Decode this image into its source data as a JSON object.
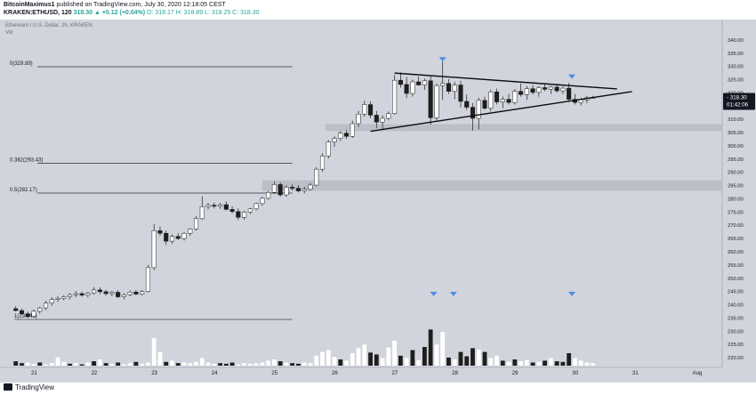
{
  "header": {
    "author": "BitcoinMaximus1",
    "published": "published on TradingView.com, July 30, 2020 12:18:05 CEST",
    "symbol": "KRAKEN:ETHUSD, 120",
    "last": "318.30",
    "change": "▲ +0.12 (+0.04%)",
    "ohlc": "O: 318.17  H: 318.89  L: 318.25  C: 318.30"
  },
  "instrument_label": "Ethereum / U.S. Dollar, 2h, KRAKEN",
  "volume_label": "Vol",
  "footer": {
    "logo_text": "TradingView"
  },
  "colors": {
    "background": "#d1d4dc",
    "up_candle": "#ffffff",
    "down_candle": "#1e1e1e",
    "marker": "#4a90e2",
    "support_zone": "#b8bbc4"
  },
  "chart_data": {
    "type": "candlestick",
    "title": "Ethereum / U.S. Dollar, 2h, KRAKEN",
    "ylim": [
      218,
      343
    ],
    "y_ticks": [
      "340.00",
      "335.00",
      "330.00",
      "325.00",
      "320.00",
      "315.00",
      "310.00",
      "305.00",
      "300.00",
      "295.00",
      "290.00",
      "285.00",
      "280.00",
      "275.00",
      "270.00",
      "265.00",
      "260.00",
      "255.00",
      "250.00",
      "245.00",
      "240.00",
      "235.00",
      "230.00",
      "225.00",
      "220.00"
    ],
    "x_ticks": [
      "21",
      "22",
      "23",
      "24",
      "25",
      "26",
      "27",
      "28",
      "29",
      "30",
      "31",
      "Aug"
    ],
    "last_price": "318.30",
    "countdown": "01:42:06",
    "fib_levels": [
      {
        "label": "0(329.89)",
        "value": 329.89
      },
      {
        "label": "0.382(293.43)",
        "value": 293.43
      },
      {
        "label": "0.5(282.17)",
        "value": 282.17
      },
      {
        "label": "1(234.45)",
        "value": 234.45
      }
    ],
    "support_zones": [
      {
        "from": 305.6,
        "to": 308.2
      },
      {
        "from": 283.0,
        "to": 287.0
      }
    ],
    "triangle": {
      "upper": {
        "from_day": 27.0,
        "from_price": 327.5,
        "to_day": 30.7,
        "to_price": 321.5
      },
      "lower": {
        "from_day": 26.6,
        "from_price": 305.5,
        "to_day": 30.95,
        "to_price": 320.5
      }
    },
    "markers": [
      {
        "day": 27.8,
        "price": 332.5,
        "on": "price"
      },
      {
        "day": 29.95,
        "price": 326.0,
        "on": "price"
      },
      {
        "day": 27.65,
        "volume": 1.0,
        "on": "volume"
      },
      {
        "day": 27.98,
        "volume": 1.0,
        "on": "volume"
      },
      {
        "day": 29.95,
        "volume": 1.0,
        "on": "volume"
      }
    ],
    "candles": [
      [
        20.7,
        238.5,
        239.5,
        237.5,
        237.8
      ],
      [
        20.8,
        237.8,
        238.6,
        236.2,
        236.6
      ],
      [
        20.9,
        236.6,
        237.4,
        235.0,
        235.6
      ],
      [
        21.0,
        235.6,
        238.2,
        235.2,
        237.5
      ],
      [
        21.1,
        237.5,
        239.2,
        236.6,
        238.8
      ],
      [
        21.2,
        238.8,
        241.5,
        238.0,
        240.6
      ],
      [
        21.3,
        240.6,
        242.8,
        239.6,
        242.0
      ],
      [
        21.4,
        242.0,
        243.2,
        241.0,
        242.4
      ],
      [
        21.5,
        242.4,
        243.6,
        241.6,
        243.0
      ],
      [
        21.6,
        243.0,
        244.5,
        242.0,
        243.8
      ],
      [
        21.7,
        243.8,
        245.2,
        242.8,
        244.2
      ],
      [
        21.8,
        244.2,
        245.0,
        243.0,
        243.6
      ],
      [
        21.9,
        243.6,
        244.8,
        242.8,
        244.3
      ],
      [
        22.0,
        244.3,
        246.6,
        243.8,
        245.6
      ],
      [
        22.1,
        245.6,
        246.5,
        244.0,
        244.9
      ],
      [
        22.2,
        244.9,
        245.6,
        243.4,
        244.2
      ],
      [
        22.3,
        244.2,
        245.2,
        243.2,
        244.7
      ],
      [
        22.4,
        244.7,
        245.5,
        242.5,
        243.0
      ],
      [
        22.5,
        243.0,
        244.4,
        242.0,
        243.8
      ],
      [
        22.6,
        243.8,
        245.4,
        243.2,
        244.8
      ],
      [
        22.7,
        244.8,
        245.6,
        243.6,
        244.0
      ],
      [
        22.8,
        244.0,
        245.5,
        243.5,
        245.0
      ],
      [
        22.9,
        245.0,
        255.0,
        244.6,
        254.0
      ],
      [
        23.0,
        254.0,
        270.5,
        253.0,
        268.0
      ],
      [
        23.1,
        268.0,
        269.5,
        266.0,
        267.0
      ],
      [
        23.2,
        267.0,
        268.0,
        262.5,
        264.0
      ],
      [
        23.3,
        264.0,
        266.5,
        263.0,
        265.8
      ],
      [
        23.4,
        265.8,
        267.0,
        264.5,
        265.0
      ],
      [
        23.5,
        265.0,
        267.5,
        264.2,
        267.0
      ],
      [
        23.6,
        267.0,
        269.0,
        266.0,
        268.6
      ],
      [
        23.7,
        268.6,
        273.5,
        268.0,
        272.5
      ],
      [
        23.8,
        272.5,
        281.0,
        272.0,
        277.0
      ],
      [
        23.9,
        277.0,
        278.5,
        276.0,
        277.6
      ],
      [
        24.0,
        277.6,
        278.6,
        276.4,
        277.2
      ],
      [
        24.1,
        277.2,
        278.4,
        276.2,
        277.8
      ],
      [
        24.2,
        277.8,
        279.0,
        275.6,
        276.0
      ],
      [
        24.3,
        276.0,
        277.2,
        274.5,
        275.2
      ],
      [
        24.4,
        275.2,
        276.4,
        272.0,
        273.0
      ],
      [
        24.5,
        273.0,
        275.5,
        272.2,
        275.0
      ],
      [
        24.6,
        275.0,
        276.6,
        274.2,
        276.2
      ],
      [
        24.7,
        276.2,
        278.6,
        275.6,
        278.2
      ],
      [
        24.8,
        278.2,
        280.8,
        277.4,
        280.2
      ],
      [
        24.9,
        280.2,
        283.0,
        279.6,
        282.4
      ],
      [
        25.0,
        282.4,
        286.5,
        281.8,
        285.4
      ],
      [
        25.1,
        285.4,
        286.2,
        280.8,
        281.5
      ],
      [
        25.2,
        281.5,
        285.2,
        280.8,
        284.4
      ],
      [
        25.3,
        284.4,
        285.6,
        283.2,
        284.0
      ],
      [
        25.4,
        284.0,
        285.2,
        282.4,
        283.0
      ],
      [
        25.5,
        283.0,
        284.6,
        282.0,
        283.6
      ],
      [
        25.6,
        283.6,
        286.0,
        283.0,
        285.2
      ],
      [
        25.7,
        285.2,
        292.0,
        284.8,
        291.2
      ],
      [
        25.8,
        291.2,
        297.2,
        290.2,
        296.2
      ],
      [
        25.9,
        296.2,
        302.2,
        295.2,
        301.5
      ],
      [
        26.0,
        301.5,
        303.6,
        299.6,
        302.8
      ],
      [
        26.1,
        302.8,
        305.6,
        301.8,
        304.8
      ],
      [
        26.2,
        304.8,
        306.0,
        302.6,
        303.6
      ],
      [
        26.3,
        303.6,
        309.5,
        303.0,
        308.4
      ],
      [
        26.4,
        308.4,
        313.2,
        307.2,
        312.0
      ],
      [
        26.5,
        312.0,
        317.0,
        311.0,
        315.6
      ],
      [
        26.6,
        315.6,
        316.8,
        310.4,
        311.6
      ],
      [
        26.7,
        311.6,
        313.2,
        306.8,
        309.0
      ],
      [
        26.8,
        309.0,
        311.6,
        306.2,
        310.4
      ],
      [
        26.9,
        310.4,
        313.0,
        309.6,
        312.2
      ],
      [
        27.0,
        312.2,
        326.8,
        311.8,
        324.8
      ],
      [
        27.1,
        324.8,
        327.8,
        322.0,
        323.2
      ],
      [
        27.2,
        323.2,
        326.0,
        318.0,
        319.8
      ],
      [
        27.3,
        319.8,
        325.0,
        318.6,
        324.2
      ],
      [
        27.4,
        324.2,
        326.2,
        322.8,
        323.0
      ],
      [
        27.5,
        323.0,
        325.4,
        321.2,
        324.6
      ],
      [
        27.6,
        324.6,
        326.4,
        308.0,
        310.6
      ],
      [
        27.7,
        310.6,
        323.6,
        309.6,
        322.8
      ],
      [
        27.8,
        322.8,
        331.8,
        317.4,
        323.6
      ],
      [
        27.9,
        323.6,
        325.2,
        319.6,
        320.6
      ],
      [
        28.0,
        320.6,
        324.2,
        317.6,
        323.0
      ],
      [
        28.1,
        323.0,
        324.6,
        314.6,
        316.8
      ],
      [
        28.2,
        316.8,
        319.4,
        313.6,
        314.6
      ],
      [
        28.3,
        314.6,
        316.2,
        305.8,
        310.4
      ],
      [
        28.4,
        310.4,
        318.2,
        306.2,
        317.2
      ],
      [
        28.5,
        317.2,
        318.6,
        313.6,
        314.2
      ],
      [
        28.6,
        314.2,
        321.2,
        313.0,
        320.4
      ],
      [
        28.7,
        320.4,
        321.6,
        315.6,
        316.6
      ],
      [
        28.8,
        316.6,
        318.6,
        314.2,
        317.6
      ],
      [
        28.9,
        317.6,
        319.6,
        315.6,
        316.4
      ],
      [
        29.0,
        316.4,
        321.4,
        315.6,
        320.6
      ],
      [
        29.1,
        320.6,
        323.6,
        318.6,
        319.4
      ],
      [
        29.2,
        319.4,
        322.6,
        317.4,
        321.6
      ],
      [
        29.3,
        321.6,
        323.0,
        319.4,
        320.2
      ],
      [
        29.4,
        320.2,
        322.6,
        318.6,
        322.0
      ],
      [
        29.5,
        322.0,
        323.6,
        320.6,
        321.4
      ],
      [
        29.6,
        321.4,
        322.6,
        319.6,
        322.2
      ],
      [
        29.7,
        322.2,
        323.2,
        320.2,
        320.8
      ],
      [
        29.8,
        320.8,
        322.4,
        319.6,
        321.8
      ],
      [
        29.9,
        321.8,
        323.8,
        316.6,
        317.6
      ],
      [
        30.0,
        317.6,
        319.6,
        315.6,
        316.4
      ],
      [
        30.1,
        316.4,
        318.2,
        315.2,
        317.4
      ],
      [
        30.2,
        317.4,
        318.9,
        316.2,
        318.17
      ],
      [
        30.3,
        318.17,
        318.89,
        318.25,
        318.3
      ]
    ],
    "volumes": [
      0.07,
      0.04,
      0.05,
      0.03,
      0.05,
      0.02,
      0.04,
      0.13,
      0.06,
      0.03,
      0.04,
      0.02,
      0.05,
      0.07,
      0.1,
      0.04,
      0.03,
      0.05,
      0.02,
      0.04,
      0.06,
      0.03,
      0.05,
      0.44,
      0.22,
      0.06,
      0.08,
      0.04,
      0.05,
      0.04,
      0.06,
      0.12,
      0.05,
      0.03,
      0.04,
      0.03,
      0.05,
      0.02,
      0.04,
      0.03,
      0.04,
      0.05,
      0.08,
      0.1,
      0.07,
      0.05,
      0.04,
      0.03,
      0.05,
      0.04,
      0.16,
      0.22,
      0.25,
      0.14,
      0.1,
      0.08,
      0.2,
      0.28,
      0.34,
      0.21,
      0.18,
      0.12,
      0.29,
      0.4,
      0.16,
      0.12,
      0.25,
      0.09,
      0.3,
      0.58,
      0.34,
      0.54,
      0.13,
      0.1,
      0.22,
      0.15,
      0.28,
      0.26,
      0.22,
      0.12,
      0.16,
      0.08,
      0.06,
      0.1,
      0.07,
      0.09,
      0.05,
      0.06,
      0.08,
      0.12,
      0.07,
      0.06,
      0.2,
      0.12,
      0.08,
      0.05,
      0.04
    ],
    "volume_up": [
      false,
      false,
      true,
      true,
      false,
      true,
      true,
      true,
      true,
      false,
      true,
      false,
      true,
      false,
      true,
      false,
      true,
      false,
      true,
      true,
      false,
      true,
      true,
      true,
      true,
      false,
      true,
      false,
      true,
      true,
      true,
      true,
      true,
      true,
      false,
      false,
      false,
      true,
      true,
      true,
      true,
      true,
      true,
      true,
      false,
      true,
      false,
      false,
      true,
      true,
      true,
      true,
      true,
      true,
      false,
      true,
      true,
      true,
      true,
      false,
      false,
      true,
      true,
      true,
      false,
      true,
      false,
      true,
      false,
      false,
      true,
      true,
      false,
      true,
      false,
      false,
      false,
      true,
      false,
      true,
      true,
      false,
      true,
      false,
      true,
      true,
      false,
      true,
      false,
      true,
      false,
      false,
      false,
      true,
      true,
      true,
      true
    ]
  }
}
